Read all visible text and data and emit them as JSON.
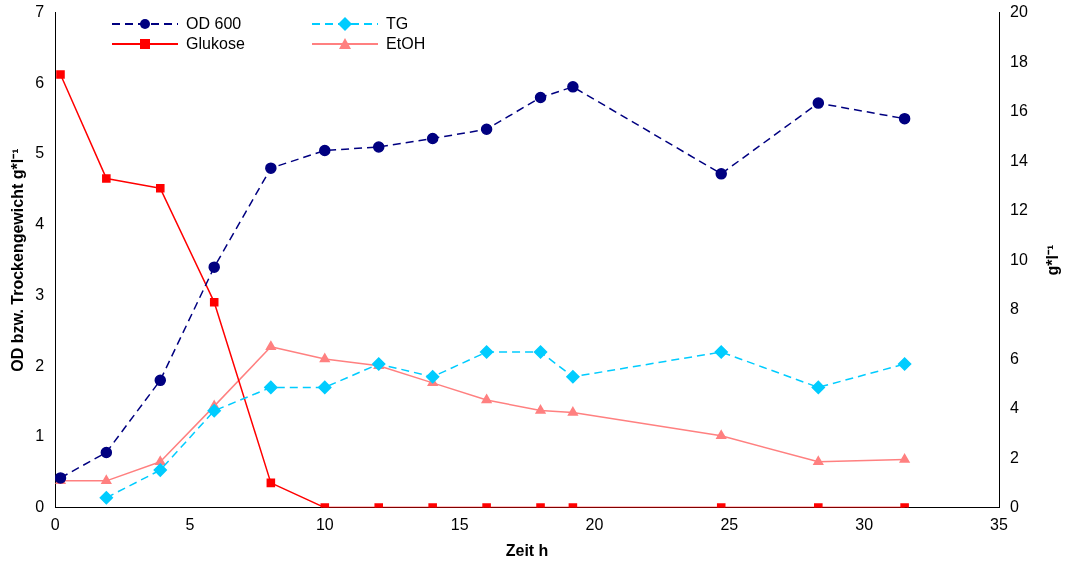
{
  "chart_data": {
    "type": "line",
    "xlabel": "Zeit h",
    "ylabel": "OD bzw. Trockengewicht g*l⁻¹",
    "y2label": "g*l⁻¹",
    "x": [
      0.2,
      1.9,
      3.9,
      5.9,
      8,
      10,
      12,
      14,
      16,
      18,
      19.2,
      24.7,
      28.3,
      31.5
    ],
    "xlim": [
      0,
      35
    ],
    "xticks": [
      0,
      5,
      10,
      15,
      20,
      25,
      30,
      35
    ],
    "ylim": [
      0,
      7
    ],
    "yticks": [
      0,
      1,
      2,
      3,
      4,
      5,
      6,
      7
    ],
    "y2lim": [
      0,
      20
    ],
    "y2ticks": [
      0,
      2,
      4,
      6,
      8,
      10,
      12,
      14,
      16,
      18,
      20
    ],
    "grid": false,
    "legend": "top left",
    "series": [
      {
        "name": "OD 600",
        "color": "#000080",
        "marker": "circle",
        "line_style": "dashed",
        "values": [
          0.42,
          0.78,
          1.8,
          3.4,
          4.8,
          5.05,
          5.1,
          5.22,
          5.35,
          5.8,
          5.95,
          4.72,
          5.72,
          5.5
        ]
      },
      {
        "name": "TG",
        "color": "#00ccff",
        "marker": "diamond",
        "line_style": "dashed",
        "values": [
          null,
          0.14,
          0.53,
          1.37,
          1.7,
          1.7,
          2.03,
          1.85,
          2.2,
          2.2,
          1.85,
          2.2,
          1.7,
          2.03
        ]
      },
      {
        "name": "Glukose",
        "color": "#ff0000",
        "marker": "square",
        "line_style": "solid",
        "axis": "y2",
        "values": [
          17.5,
          13.3,
          12.9,
          8.3,
          1.0,
          0,
          0,
          0,
          0,
          0,
          0,
          0,
          0,
          0
        ]
      },
      {
        "name": "EtOH",
        "color": "#ff8080",
        "marker": "triangle",
        "line_style": "solid",
        "axis": "y2",
        "values": [
          1.08,
          1.08,
          1.85,
          4.1,
          6.5,
          6.0,
          5.73,
          5.04,
          4.35,
          3.92,
          3.84,
          2.9,
          1.85,
          1.94
        ]
      }
    ]
  }
}
